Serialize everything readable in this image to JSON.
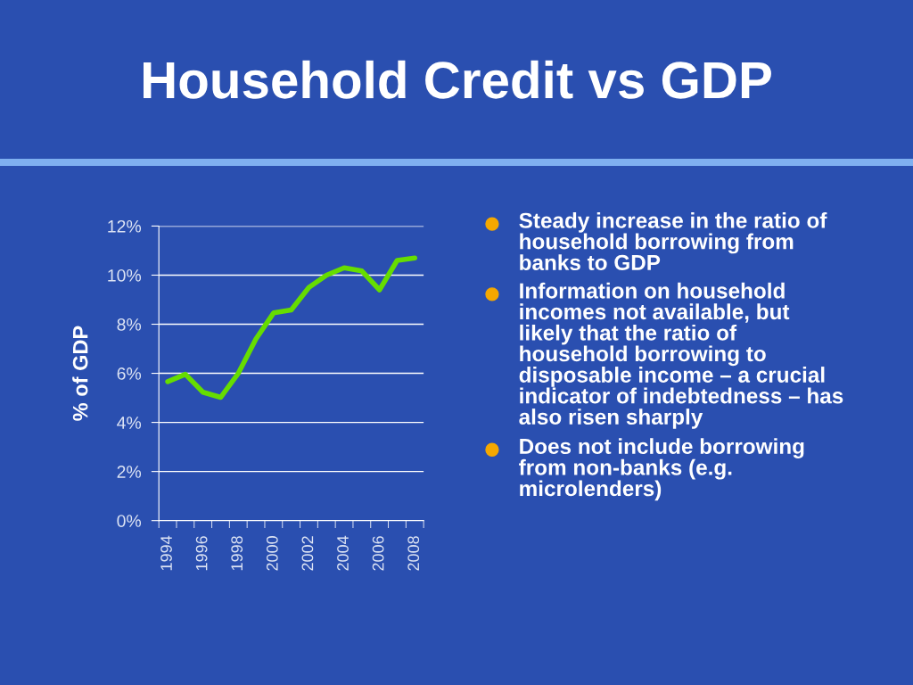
{
  "chart_data": {
    "type": "line",
    "title": "Household Credit vs GDP",
    "ylabel": "% of GDP",
    "categories": [
      "1994",
      null,
      "1996",
      null,
      "1998",
      null,
      "2000",
      null,
      "2002",
      null,
      "2004",
      null,
      "2006",
      null,
      "2008"
    ],
    "series": [
      {
        "color": "#66dd00",
        "values": [
          5.66,
          5.96,
          5.23,
          5.02,
          6.0,
          7.4,
          8.46,
          8.58,
          9.5,
          10.0,
          10.3,
          10.17,
          9.4,
          10.6,
          10.7
        ]
      }
    ],
    "ylim": [
      0,
      12
    ],
    "yticks": [
      {
        "value": 0,
        "label": "0%"
      },
      {
        "value": 2,
        "label": "2%"
      },
      {
        "value": 4,
        "label": "4%"
      },
      {
        "value": 6,
        "label": "6%"
      },
      {
        "value": 8,
        "label": "8%"
      },
      {
        "value": 10,
        "label": "10%"
      },
      {
        "value": 12,
        "label": "12%"
      }
    ],
    "grid": "y",
    "marker": "none",
    "line_style": "solid",
    "annotations": [
      "Steady increase in the ratio of\nhousehold borrowing from\nbanks to GDP",
      "Information on household\nincomes not available, but\nlikely that the ratio of\nhousehold borrowing to\ndisposable income – a crucial\nindicator of indebtedness – has\nalso risen sharply",
      "Does not include borrowing\nfrom non-banks (e.g.\nmicrolenders)"
    ]
  }
}
